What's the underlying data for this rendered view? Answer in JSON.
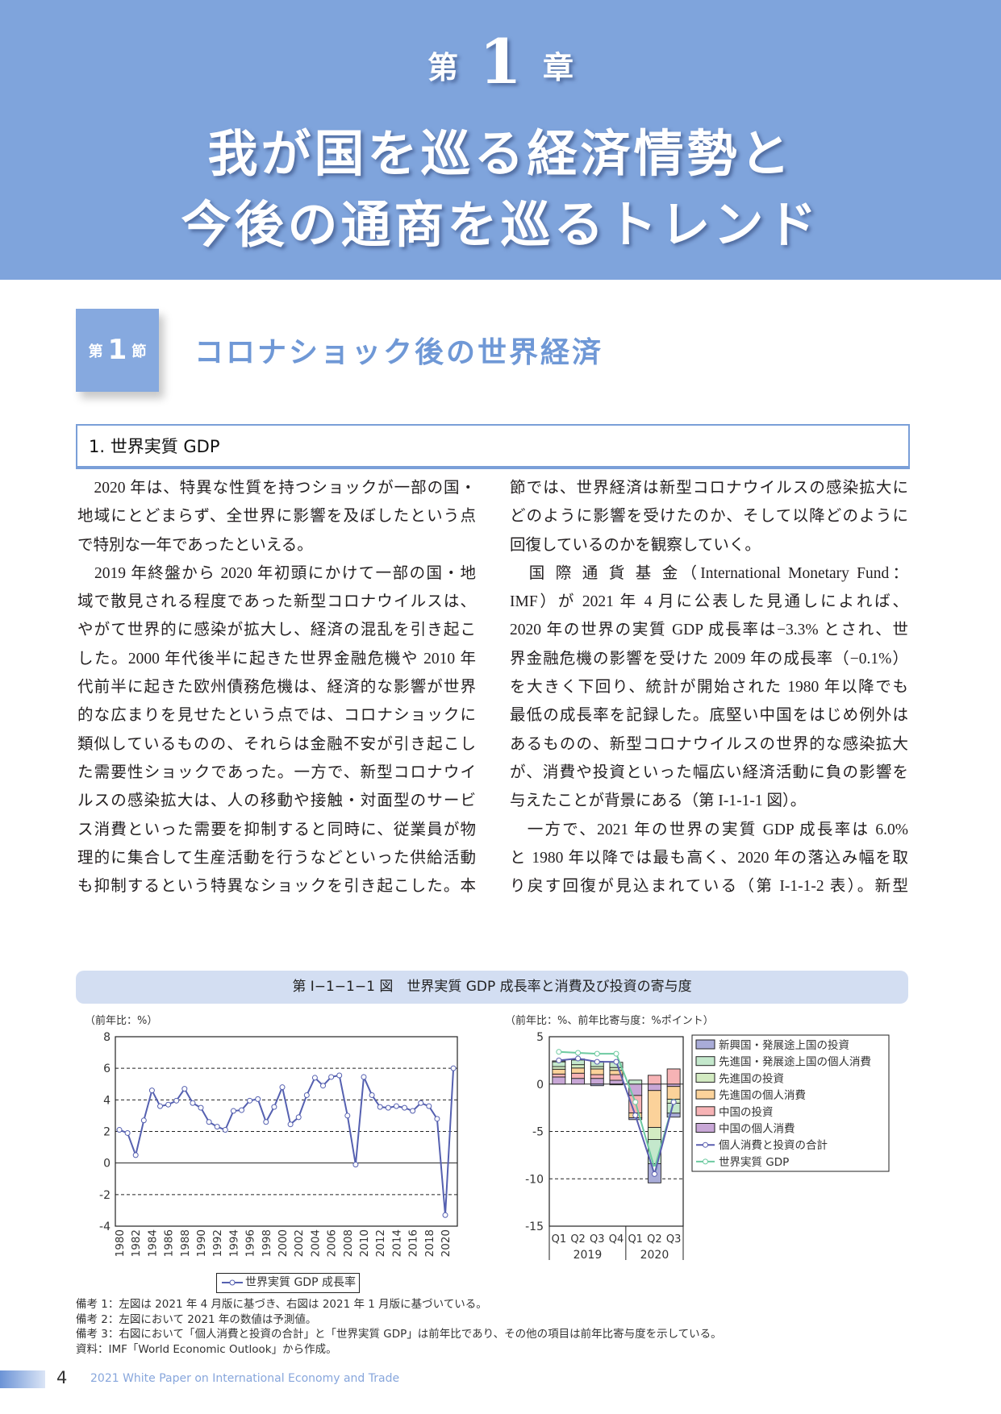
{
  "header": {
    "chapter_prefix": "第",
    "chapter_number": "1",
    "chapter_suffix": "章",
    "title_line1": "我が国を巡る経済情勢と",
    "title_line2": "今後の通商を巡るトレンド"
  },
  "section": {
    "prefix": "第",
    "number": "1",
    "suffix": "節",
    "title": "コロナショック後の世界経済"
  },
  "subsection": {
    "title": "1.  世界実質 GDP"
  },
  "body": {
    "columns": [
      {
        "paragraphs": [
          {
            "lines": [
              "　2020 年は、特異な性質を持つショックが一部の国・",
              "地域にとどまらず、全世界に影響を及ぼしたという点",
              "で特別な一年であったといえる。"
            ]
          },
          {
            "lines": [
              "　2019 年終盤から 2020 年初頭にかけて一部の国・地",
              "域で散見される程度であった新型コロナウイルスは、",
              "やがて世界的に感染が拡大し、経済の混乱を引き起こ",
              "した。2000 年代後半に起きた世界金融危機や 2010 年",
              "代前半に起きた欧州債務危機は、経済的な影響が世界",
              "的な広まりを見せたという点では、コロナショックに",
              "類似しているものの、それらは金融不安が引き起こし",
              "た需要性ショックであった。一方で、新型コロナウイ",
              "ルスの感染拡大は、人の移動や接触・対面型のサービ",
              "ス消費といった需要を抑制すると同時に、従業員が物",
              "理的に集合して生産活動を行うなどといった供給活動",
              "も抑制するという特異なショックを引き起こした。本"
            ]
          }
        ]
      },
      {
        "paragraphs": [
          {
            "lines": [
              "節では、世界経済は新型コロナウイルスの感染拡大に",
              "どのように影響を受けたのか、そして以降どのように",
              "回復しているのかを観察していく。"
            ]
          },
          {
            "lines": [
              "　国 際 通 貨 基 金（International Monetary Fund：",
              "IMF）が 2021 年 4 月に公表した見通しによれば、",
              "2020 年の世界の実質 GDP 成長率は−3.3% とされ、世",
              "界金融危機の影響を受けた 2009 年の成長率（−0.1%）",
              "を大きく下回り、統計が開始された 1980 年以降でも",
              "最低の成長率を記録した。底堅い中国をはじめ例外は",
              "あるものの、新型コロナウイルスの世界的な感染拡大",
              "が、消費や投資といった幅広い経済活動に負の影響を",
              "与えたことが背景にある（第 I-1-1-1 図）。"
            ]
          },
          {
            "lines": [
              "　一方で、2021 年の世界の実質 GDP 成長率は 6.0%",
              "と 1980 年以降では最も高く、2020 年の落込み幅を取",
              "り戻す回復が見込まれている（第 I-1-1-2 表）。新型"
            ]
          }
        ]
      }
    ]
  },
  "figure": {
    "title": "第 I−1−1−1 図　世界実質 GDP 成長率と消費及び投資の寄与度",
    "notes": [
      "備考 1：左図は 2021 年 4 月版に基づき、右図は 2021 年 1 月版に基づいている。",
      "備考 2：左図において 2021 年の数値は予測値。",
      "備考 3：右図において「個人消費と投資の合計」と「世界実質 GDP」は前年比であり、その他の項目は前年比寄与度を示している。",
      "資料：IMF「World Economic Outlook」から作成。"
    ]
  },
  "chart_data": [
    {
      "type": "line",
      "unit_label": "（前年比：%）",
      "ylim": [
        -4,
        8
      ],
      "yticks": [
        -4,
        -2,
        0,
        2,
        4,
        6,
        8
      ],
      "grid": "dashed horizontal",
      "xtick_labels": [
        "1980",
        "1982",
        "1984",
        "1986",
        "1988",
        "1990",
        "1992",
        "1994",
        "1996",
        "1998",
        "2000",
        "2002",
        "2004",
        "2006",
        "2008",
        "2010",
        "2012",
        "2014",
        "2016",
        "2018",
        "2020"
      ],
      "x": [
        1980,
        1981,
        1982,
        1983,
        1984,
        1985,
        1986,
        1987,
        1988,
        1989,
        1990,
        1991,
        1992,
        1993,
        1994,
        1995,
        1996,
        1997,
        1998,
        1999,
        2000,
        2001,
        2002,
        2003,
        2004,
        2005,
        2006,
        2007,
        2008,
        2009,
        2010,
        2011,
        2012,
        2013,
        2014,
        2015,
        2016,
        2017,
        2018,
        2019,
        2020,
        2021
      ],
      "series": [
        {
          "name": "世界実質 GDP 成長率",
          "color": "#5560b0",
          "values": [
            2.1,
            1.9,
            0.5,
            2.7,
            4.6,
            3.6,
            3.7,
            3.95,
            4.7,
            3.8,
            3.5,
            2.6,
            2.3,
            2.1,
            3.3,
            3.35,
            3.95,
            4.05,
            2.6,
            3.55,
            4.8,
            2.45,
            2.9,
            4.3,
            5.4,
            4.9,
            5.45,
            5.55,
            3.0,
            -0.1,
            5.45,
            4.3,
            3.55,
            3.5,
            3.6,
            3.5,
            3.3,
            3.8,
            3.6,
            2.8,
            -3.3,
            6.0
          ]
        }
      ],
      "legend": "bottom"
    },
    {
      "type": "bar",
      "stacked": true,
      "unit_label": "（前年比：%、前年比寄与度：%ポイント）",
      "ylim": [
        -15,
        5
      ],
      "yticks": [
        -15,
        -10,
        -5,
        0,
        5
      ],
      "grid": "dashed horizontal",
      "categories": [
        "Q1",
        "Q2",
        "Q3",
        "Q4",
        "Q1",
        "Q2",
        "Q3"
      ],
      "groups": [
        {
          "label": "2019",
          "count": 4
        },
        {
          "label": "2020",
          "count": 3
        }
      ],
      "series": [
        {
          "name": "新興国・発展途上国の投資",
          "color": "#a9acd8",
          "values": [
            0.1,
            0.1,
            -0.17,
            -0.08,
            -0.2,
            -2.03,
            -0.42
          ]
        },
        {
          "name": "先進国・発展途上国の個人消費",
          "color": "#c4e8cc",
          "values": [
            0.5,
            0.5,
            0.55,
            0.55,
            0.42,
            -2.55,
            -1.05
          ]
        },
        {
          "name": "先進国の投資",
          "color": "#d3ebc2",
          "values": [
            0.28,
            0.35,
            0.25,
            0.3,
            0,
            -1.27,
            -0.42
          ]
        },
        {
          "name": "先進国の個人消費",
          "color": "#fbd29a",
          "values": [
            0.51,
            0.55,
            0.6,
            0.45,
            -0.5,
            -3.9,
            -1.35
          ]
        },
        {
          "name": "中国の投資",
          "color": "#f6b3b5",
          "values": [
            0.31,
            0.55,
            0.4,
            0.6,
            -1.85,
            0.93,
            1.6
          ]
        },
        {
          "name": "中国の個人消費",
          "color": "#c8a7d6",
          "values": [
            0.75,
            0.6,
            0.6,
            0.4,
            -1.2,
            -0.68,
            -0.25
          ]
        }
      ],
      "lines": [
        {
          "name": "個人消費と投資の合計",
          "color": "#5b5fb0",
          "values": [
            2.5,
            2.7,
            2.35,
            2.35,
            -3.3,
            -9.5,
            -1.9
          ]
        },
        {
          "name": "世界実質 GDP",
          "color": "#6dcaa0",
          "values": [
            3.4,
            3.3,
            3.2,
            3.2,
            -1.9,
            -8.9,
            -1.85
          ]
        }
      ],
      "legend": "right"
    }
  ],
  "footer": {
    "page_number": "4",
    "publication": "2021 White Paper on International Economy and Trade"
  }
}
